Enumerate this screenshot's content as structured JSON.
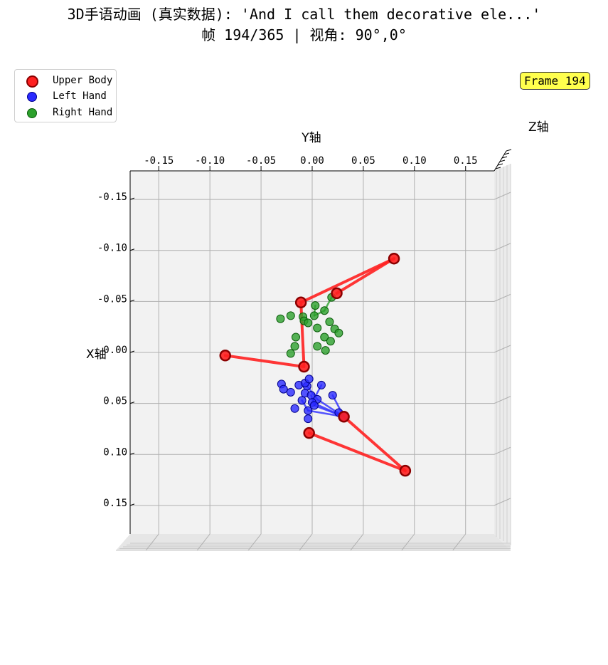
{
  "title": {
    "line1": "3D手语动画 (真实数据): 'And I call them decorative ele...'",
    "line2": "帧 194/365 | 视角: 90°,0°"
  },
  "frame_badge": "Frame 194",
  "legend": [
    {
      "label": "Upper Body",
      "color": "#ff2020"
    },
    {
      "label": "Left Hand",
      "color": "#2b2bff"
    },
    {
      "label": "Right Hand",
      "color": "#2ca02c"
    }
  ],
  "axes": {
    "y_label": "Y轴",
    "x_label": "X轴",
    "z_label": "Z轴",
    "y_ticks": [
      "-0.15",
      "-0.10",
      "-0.05",
      "0.00",
      "0.05",
      "0.10",
      "0.15"
    ],
    "x_ticks": [
      "-0.15",
      "-0.10",
      "-0.05",
      "0.00",
      "0.05",
      "0.10",
      "0.15"
    ]
  },
  "chart_data": {
    "type": "scatter",
    "view": {
      "elev": 90,
      "azim": 0
    },
    "ylim": [
      -0.178,
      0.178
    ],
    "xlim": [
      -0.178,
      0.178
    ],
    "series": [
      {
        "name": "Upper Body",
        "color": "#ff2020",
        "points": [
          {
            "y": -0.011,
            "x": -0.049
          },
          {
            "y": 0.08,
            "x": -0.092
          },
          {
            "y": 0.024,
            "x": -0.058
          },
          {
            "y": -0.085,
            "x": 0.003
          },
          {
            "y": -0.008,
            "x": 0.014
          },
          {
            "y": 0.031,
            "x": 0.063
          },
          {
            "y": -0.003,
            "x": 0.079
          },
          {
            "y": 0.091,
            "x": 0.116
          }
        ],
        "edges": [
          [
            0,
            1
          ],
          [
            1,
            2
          ],
          [
            0,
            4
          ],
          [
            3,
            4
          ],
          [
            6,
            7
          ],
          [
            7,
            5
          ]
        ]
      },
      {
        "name": "Left Hand",
        "color": "#2b2bff",
        "points": [
          {
            "y": -0.03,
            "x": 0.031
          },
          {
            "y": -0.028,
            "x": 0.036
          },
          {
            "y": -0.021,
            "x": 0.039
          },
          {
            "y": -0.013,
            "x": 0.032
          },
          {
            "y": -0.005,
            "x": 0.033
          },
          {
            "y": 0.009,
            "x": 0.032
          },
          {
            "y": 0.02,
            "x": 0.042
          },
          {
            "y": -0.007,
            "x": 0.04
          },
          {
            "y": -0.001,
            "x": 0.042
          },
          {
            "y": 0.005,
            "x": 0.046
          },
          {
            "y": -0.01,
            "x": 0.047
          },
          {
            "y": 0.0,
            "x": 0.049
          },
          {
            "y": -0.017,
            "x": 0.055
          },
          {
            "y": -0.004,
            "x": 0.057
          },
          {
            "y": 0.002,
            "x": 0.052
          },
          {
            "y": -0.007,
            "x": 0.03
          },
          {
            "y": -0.004,
            "x": 0.065
          },
          {
            "y": 0.026,
            "x": 0.059
          },
          {
            "y": 0.031,
            "x": 0.063
          },
          {
            "y": -0.003,
            "x": 0.026
          }
        ],
        "edges": [
          [
            18,
            14
          ],
          [
            18,
            13
          ],
          [
            18,
            11
          ],
          [
            18,
            9
          ],
          [
            18,
            6
          ],
          [
            14,
            8
          ],
          [
            13,
            10
          ],
          [
            11,
            5
          ],
          [
            9,
            4
          ]
        ]
      },
      {
        "name": "Right Hand",
        "color": "#2ca02c",
        "points": [
          {
            "y": 0.019,
            "x": -0.054
          },
          {
            "y": 0.003,
            "x": -0.046
          },
          {
            "y": 0.012,
            "x": -0.041
          },
          {
            "y": 0.002,
            "x": -0.036
          },
          {
            "y": -0.009,
            "x": -0.035
          },
          {
            "y": -0.021,
            "x": -0.036
          },
          {
            "y": -0.031,
            "x": -0.033
          },
          {
            "y": -0.008,
            "x": -0.031
          },
          {
            "y": -0.004,
            "x": -0.029
          },
          {
            "y": 0.017,
            "x": -0.03
          },
          {
            "y": 0.005,
            "x": -0.024
          },
          {
            "y": 0.022,
            "x": -0.023
          },
          {
            "y": -0.016,
            "x": -0.015
          },
          {
            "y": 0.012,
            "x": -0.015
          },
          {
            "y": 0.026,
            "x": -0.019
          },
          {
            "y": 0.018,
            "x": -0.011
          },
          {
            "y": -0.017,
            "x": -0.006
          },
          {
            "y": 0.005,
            "x": -0.006
          },
          {
            "y": 0.013,
            "x": -0.002
          },
          {
            "y": -0.021,
            "x": 0.001
          }
        ],
        "edges": [
          [
            0,
            2
          ],
          [
            2,
            3
          ],
          [
            3,
            1
          ]
        ]
      }
    ]
  }
}
